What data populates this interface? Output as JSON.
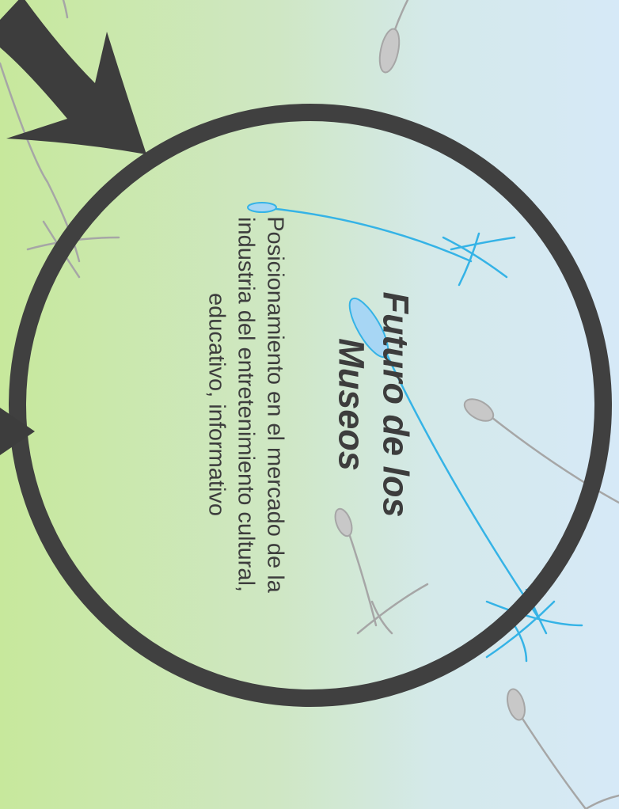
{
  "diagram": {
    "title": "Futuro de los Museos",
    "subtitle": "Posicionamiento en el mercado de la industria del entretenimiento cultural, educativo, informativo"
  },
  "colors": {
    "circle": "#404040",
    "arrow": "#3d3d3d",
    "blue_sketch": "#35b3e6",
    "blue_fill": "#a7d6f4",
    "grey_sketch": "#a6a6a6",
    "grey_fill": "#c8c8c8",
    "gradient_left": "#c7e89c",
    "gradient_right": "#d6e9f7"
  }
}
